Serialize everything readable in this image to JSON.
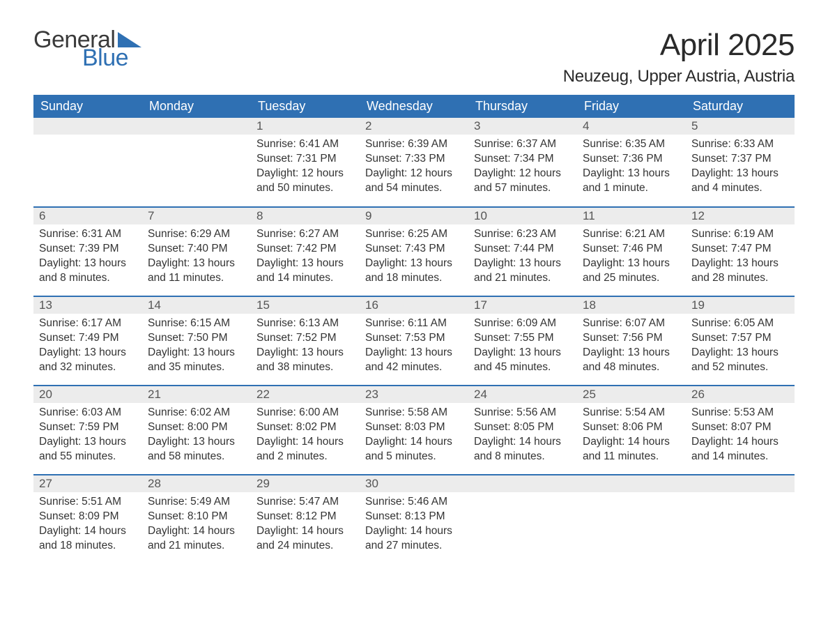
{
  "logo": {
    "text1": "General",
    "text2": "Blue",
    "shape_color": "#2f70b3"
  },
  "title": "April 2025",
  "location": "Neuzeug, Upper Austria, Austria",
  "colors": {
    "header_bg": "#2f70b3",
    "header_text": "#ffffff",
    "daynum_bg": "#ececec",
    "daynum_text": "#555555",
    "body_text": "#333333",
    "row_border": "#2f70b3",
    "page_bg": "#ffffff"
  },
  "fonts": {
    "title_size_pt": 33,
    "location_size_pt": 18,
    "header_size_pt": 14,
    "daynum_size_pt": 13,
    "body_size_pt": 12
  },
  "weekdays": [
    "Sunday",
    "Monday",
    "Tuesday",
    "Wednesday",
    "Thursday",
    "Friday",
    "Saturday"
  ],
  "weeks": [
    [
      null,
      null,
      {
        "d": "1",
        "sr": "6:41 AM",
        "ss": "7:31 PM",
        "dl": "12 hours and 50 minutes."
      },
      {
        "d": "2",
        "sr": "6:39 AM",
        "ss": "7:33 PM",
        "dl": "12 hours and 54 minutes."
      },
      {
        "d": "3",
        "sr": "6:37 AM",
        "ss": "7:34 PM",
        "dl": "12 hours and 57 minutes."
      },
      {
        "d": "4",
        "sr": "6:35 AM",
        "ss": "7:36 PM",
        "dl": "13 hours and 1 minute."
      },
      {
        "d": "5",
        "sr": "6:33 AM",
        "ss": "7:37 PM",
        "dl": "13 hours and 4 minutes."
      }
    ],
    [
      {
        "d": "6",
        "sr": "6:31 AM",
        "ss": "7:39 PM",
        "dl": "13 hours and 8 minutes."
      },
      {
        "d": "7",
        "sr": "6:29 AM",
        "ss": "7:40 PM",
        "dl": "13 hours and 11 minutes."
      },
      {
        "d": "8",
        "sr": "6:27 AM",
        "ss": "7:42 PM",
        "dl": "13 hours and 14 minutes."
      },
      {
        "d": "9",
        "sr": "6:25 AM",
        "ss": "7:43 PM",
        "dl": "13 hours and 18 minutes."
      },
      {
        "d": "10",
        "sr": "6:23 AM",
        "ss": "7:44 PM",
        "dl": "13 hours and 21 minutes."
      },
      {
        "d": "11",
        "sr": "6:21 AM",
        "ss": "7:46 PM",
        "dl": "13 hours and 25 minutes."
      },
      {
        "d": "12",
        "sr": "6:19 AM",
        "ss": "7:47 PM",
        "dl": "13 hours and 28 minutes."
      }
    ],
    [
      {
        "d": "13",
        "sr": "6:17 AM",
        "ss": "7:49 PM",
        "dl": "13 hours and 32 minutes."
      },
      {
        "d": "14",
        "sr": "6:15 AM",
        "ss": "7:50 PM",
        "dl": "13 hours and 35 minutes."
      },
      {
        "d": "15",
        "sr": "6:13 AM",
        "ss": "7:52 PM",
        "dl": "13 hours and 38 minutes."
      },
      {
        "d": "16",
        "sr": "6:11 AM",
        "ss": "7:53 PM",
        "dl": "13 hours and 42 minutes."
      },
      {
        "d": "17",
        "sr": "6:09 AM",
        "ss": "7:55 PM",
        "dl": "13 hours and 45 minutes."
      },
      {
        "d": "18",
        "sr": "6:07 AM",
        "ss": "7:56 PM",
        "dl": "13 hours and 48 minutes."
      },
      {
        "d": "19",
        "sr": "6:05 AM",
        "ss": "7:57 PM",
        "dl": "13 hours and 52 minutes."
      }
    ],
    [
      {
        "d": "20",
        "sr": "6:03 AM",
        "ss": "7:59 PM",
        "dl": "13 hours and 55 minutes."
      },
      {
        "d": "21",
        "sr": "6:02 AM",
        "ss": "8:00 PM",
        "dl": "13 hours and 58 minutes."
      },
      {
        "d": "22",
        "sr": "6:00 AM",
        "ss": "8:02 PM",
        "dl": "14 hours and 2 minutes."
      },
      {
        "d": "23",
        "sr": "5:58 AM",
        "ss": "8:03 PM",
        "dl": "14 hours and 5 minutes."
      },
      {
        "d": "24",
        "sr": "5:56 AM",
        "ss": "8:05 PM",
        "dl": "14 hours and 8 minutes."
      },
      {
        "d": "25",
        "sr": "5:54 AM",
        "ss": "8:06 PM",
        "dl": "14 hours and 11 minutes."
      },
      {
        "d": "26",
        "sr": "5:53 AM",
        "ss": "8:07 PM",
        "dl": "14 hours and 14 minutes."
      }
    ],
    [
      {
        "d": "27",
        "sr": "5:51 AM",
        "ss": "8:09 PM",
        "dl": "14 hours and 18 minutes."
      },
      {
        "d": "28",
        "sr": "5:49 AM",
        "ss": "8:10 PM",
        "dl": "14 hours and 21 minutes."
      },
      {
        "d": "29",
        "sr": "5:47 AM",
        "ss": "8:12 PM",
        "dl": "14 hours and 24 minutes."
      },
      {
        "d": "30",
        "sr": "5:46 AM",
        "ss": "8:13 PM",
        "dl": "14 hours and 27 minutes."
      },
      null,
      null,
      null
    ]
  ],
  "labels": {
    "sunrise": "Sunrise:",
    "sunset": "Sunset:",
    "daylight": "Daylight:"
  }
}
